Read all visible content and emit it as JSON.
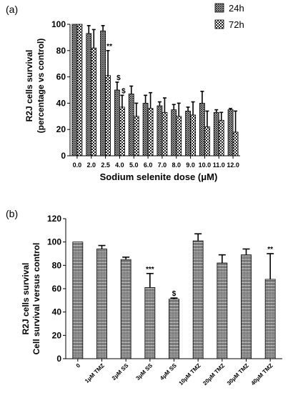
{
  "colors": {
    "axis": "#000000",
    "bar_24h": "dense-hatch",
    "bar_72h": "checkered",
    "bar_b": "zigzag-hatch"
  },
  "chart_data": [
    {
      "panel_label": "(a)",
      "type": "bar",
      "categories": [
        "0.0",
        "2.0",
        "2.5",
        "4.0",
        "5.0",
        "6.0",
        "7.0",
        "8.0",
        "9.0",
        "10.0",
        "11.0",
        "12.0"
      ],
      "series": [
        {
          "name": "24h",
          "values": [
            100,
            93,
            95,
            50,
            47,
            40,
            38,
            35,
            34,
            40,
            33,
            35
          ],
          "errors": [
            0,
            6,
            4,
            6,
            6,
            6,
            3,
            4,
            3,
            9,
            2,
            1
          ]
        },
        {
          "name": "72h",
          "values": [
            100,
            82,
            61,
            37,
            30,
            36,
            33,
            30,
            31,
            22,
            27,
            18
          ],
          "errors": [
            0,
            14,
            19,
            9,
            10,
            12,
            11,
            10,
            10,
            12,
            6,
            16
          ]
        }
      ],
      "annotations": [
        {
          "category": "2.5",
          "series": "72h",
          "text": "**"
        },
        {
          "category": "4.0",
          "series": "24h",
          "text": "$"
        },
        {
          "category": "4.0",
          "series": "72h",
          "text": "$"
        }
      ],
      "title": "",
      "xlabel": "Sodium selenite dose (μM)",
      "ylabel": [
        "R2J cells survival",
        "(percentage vs control)"
      ],
      "ylim": [
        0,
        100
      ],
      "yticks": [
        0,
        20,
        40,
        60,
        80,
        100
      ],
      "legend_placement": "top-right",
      "grid": false
    },
    {
      "panel_label": "(b)",
      "type": "bar",
      "categories": [
        "0",
        "1μM TMZ",
        "2μM SS",
        "3μM SS",
        "4μM SS",
        "10μM TMZ",
        "20μM TMZ",
        "30μM TMZ",
        "40μM TMZ"
      ],
      "series": [
        {
          "values": [
            100,
            94,
            85,
            61,
            51,
            101,
            82,
            89,
            68
          ],
          "errors": [
            0,
            3,
            2,
            12,
            1,
            6,
            7,
            5,
            22
          ]
        }
      ],
      "annotations": [
        {
          "category": "3μM SS",
          "text": "***"
        },
        {
          "category": "4μM SS",
          "text": "$"
        },
        {
          "category": "40μM TMZ",
          "text": "**"
        }
      ],
      "title": "",
      "xlabel": "",
      "ylabel": [
        "R2J cells survival",
        "Cell survival versus control"
      ],
      "ylim": [
        0,
        120
      ],
      "yticks": [
        0,
        20,
        40,
        60,
        80,
        100,
        120
      ],
      "grid": false
    }
  ]
}
